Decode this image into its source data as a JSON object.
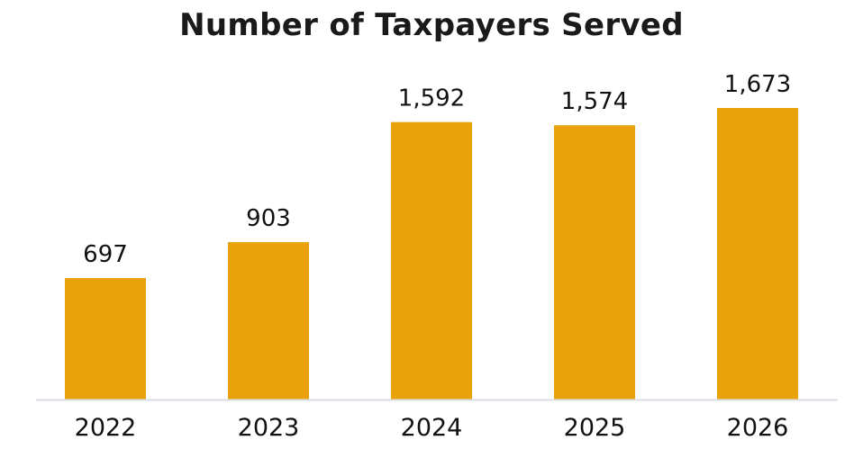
{
  "chart_data": {
    "type": "bar",
    "title": "Number of Taxpayers Served",
    "categories": [
      "2022",
      "2023",
      "2024",
      "2025",
      "2026"
    ],
    "values": [
      697,
      903,
      1592,
      1574,
      1673
    ],
    "value_labels": [
      "697",
      "903",
      "1,592",
      "1,574",
      "1,673"
    ],
    "xlabel": "",
    "ylabel": "",
    "ylim": [
      0,
      1700
    ],
    "grid": false,
    "bar_color": "#E9A20C",
    "axis_color": "#d9dde3"
  }
}
